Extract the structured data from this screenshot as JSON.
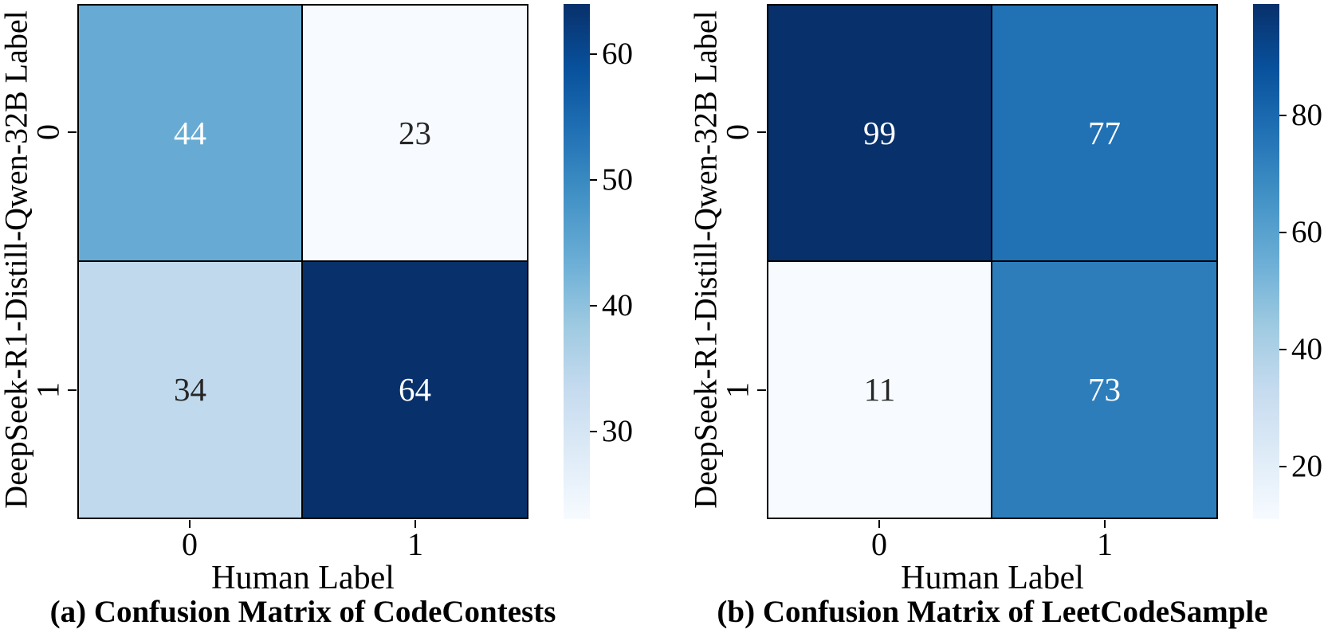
{
  "figure": {
    "background": "#ffffff",
    "line_color": "#000000",
    "annotation_text_dark": "#262626",
    "annotation_text_light": "#ffffff",
    "colormap_name": "Blues",
    "colormap_anchors": [
      "#f7fbff",
      "#deebf7",
      "#c6dbef",
      "#9ecae1",
      "#6baed6",
      "#4292c6",
      "#2171b5",
      "#08519c",
      "#08306b"
    ]
  },
  "chart_data": [
    {
      "type": "heatmap",
      "title": "(a) Confusion Matrix of CodeContests",
      "xlabel": "Human Label",
      "ylabel": "DeepSeek-R1-Distill-Qwen-32B Label",
      "x_categories": [
        "0",
        "1"
      ],
      "y_categories": [
        "0",
        "1"
      ],
      "matrix": [
        [
          44,
          23
        ],
        [
          34,
          64
        ]
      ],
      "vmin": 23,
      "vmax": 64,
      "colorbar_ticks": [
        30,
        40,
        50,
        60
      ],
      "legend_position": "right-colorbar",
      "grid": false
    },
    {
      "type": "heatmap",
      "title": "(b) Confusion Matrix of LeetCodeSample",
      "xlabel": "Human Label",
      "ylabel": "DeepSeek-R1-Distill-Qwen-32B Label",
      "x_categories": [
        "0",
        "1"
      ],
      "y_categories": [
        "0",
        "1"
      ],
      "matrix": [
        [
          99,
          77
        ],
        [
          11,
          73
        ]
      ],
      "vmin": 11,
      "vmax": 99,
      "colorbar_ticks": [
        20,
        40,
        60,
        80
      ],
      "legend_position": "right-colorbar",
      "grid": false
    }
  ]
}
